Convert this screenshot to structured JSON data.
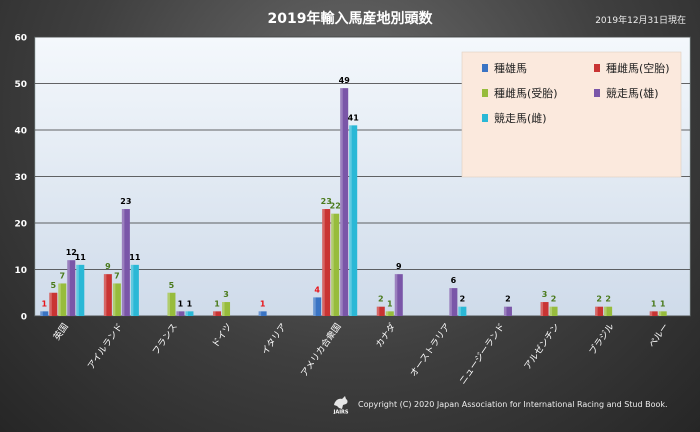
{
  "header": {
    "title": "2019年輸入馬産地別頭数",
    "date": "2019年12月31日現在"
  },
  "footer": {
    "logo_text": "JAIRS",
    "copyright": "Copyright (C) 2020 Japan Association for International Racing and Stud Book."
  },
  "chart_data": {
    "type": "bar",
    "title": "2019年輸入馬産地別頭数",
    "categories": [
      "英国",
      "アイルランド",
      "フランス",
      "ドイツ",
      "イタリア",
      "アメリカ合衆国",
      "カナダ",
      "オーストラリア",
      "ニュージーランド",
      "アルゼンチン",
      "ブラジル",
      "ペルー"
    ],
    "ylim": [
      0,
      60
    ],
    "yticks": [
      0,
      10,
      20,
      30,
      40,
      50,
      60
    ],
    "grid": true,
    "legend_position": "top-right",
    "series": [
      {
        "name": "種雄馬",
        "color": "#3a74c4",
        "label_color": "#e8141a",
        "values": [
          1,
          null,
          null,
          null,
          1,
          4,
          null,
          null,
          null,
          null,
          null,
          null
        ]
      },
      {
        "name": "種雌馬(空胎)",
        "color": "#c93433",
        "label_color": "#4a7a1c",
        "values": [
          5,
          9,
          null,
          1,
          null,
          23,
          2,
          null,
          null,
          3,
          2,
          1
        ]
      },
      {
        "name": "種雌馬(受胎)",
        "color": "#97bc3c",
        "label_color": "#4a7a1c",
        "values": [
          7,
          7,
          5,
          3,
          null,
          22,
          1,
          null,
          null,
          2,
          2,
          1
        ]
      },
      {
        "name": "競走馬(雄)",
        "color": "#7a56a8",
        "label_color": "#000000",
        "values": [
          12,
          23,
          1,
          null,
          null,
          49,
          9,
          6,
          2,
          null,
          null,
          null
        ]
      },
      {
        "name": "競走馬(雌)",
        "color": "#2ab8d6",
        "label_color": "#000000",
        "values": [
          11,
          11,
          1,
          null,
          null,
          41,
          null,
          2,
          null,
          null,
          null,
          null
        ]
      }
    ]
  }
}
